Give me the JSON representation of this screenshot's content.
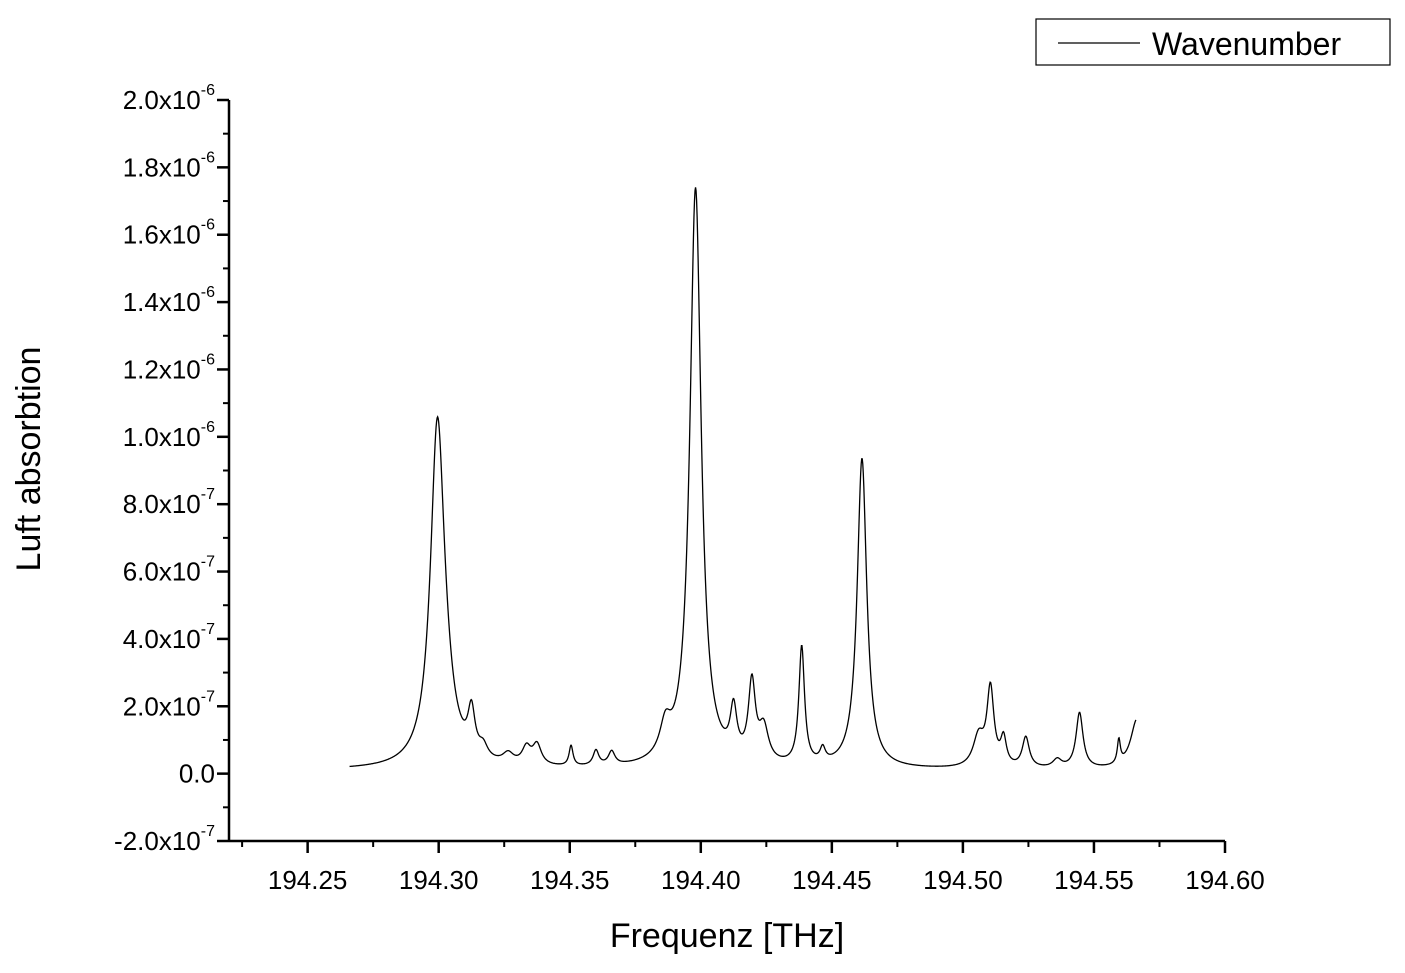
{
  "chart_data": {
    "type": "line",
    "xlabel": "Frequenz [THz]",
    "ylabel": "Luft absorbtion",
    "xlim": [
      194.22,
      194.6
    ],
    "ylim": [
      -2e-07,
      2e-06
    ],
    "x_ticks": [
      194.25,
      194.3,
      194.35,
      194.4,
      194.45,
      194.5,
      194.55,
      194.6
    ],
    "x_tick_labels": [
      "194.25",
      "194.30",
      "194.35",
      "194.40",
      "194.45",
      "194.50",
      "194.55",
      "194.60"
    ],
    "y_ticks": [
      -2e-07,
      0,
      2e-07,
      4e-07,
      6e-07,
      8e-07,
      1e-06,
      1.2e-06,
      1.4e-06,
      1.6e-06,
      1.8e-06,
      2e-06
    ],
    "y_tick_labels": [
      {
        "mantissa": "-2.0x10",
        "exp": "-7"
      },
      {
        "mantissa": "0.0",
        "exp": ""
      },
      {
        "mantissa": "2.0x10",
        "exp": "-7"
      },
      {
        "mantissa": "4.0x10",
        "exp": "-7"
      },
      {
        "mantissa": "6.0x10",
        "exp": "-7"
      },
      {
        "mantissa": "8.0x10",
        "exp": "-7"
      },
      {
        "mantissa": "1.0x10",
        "exp": "-6"
      },
      {
        "mantissa": "1.2x10",
        "exp": "-6"
      },
      {
        "mantissa": "1.4x10",
        "exp": "-6"
      },
      {
        "mantissa": "1.6x10",
        "exp": "-6"
      },
      {
        "mantissa": "1.8x10",
        "exp": "-6"
      },
      {
        "mantissa": "2.0x10",
        "exp": "-6"
      }
    ],
    "grid": false,
    "legend_position": "top-right",
    "series": [
      {
        "name": "Wavenumber",
        "color": "#000000",
        "baseline": 1e-08,
        "x_start": 194.266,
        "x_end": 194.566,
        "peaks": [
          {
            "center": 194.2995,
            "height": 9.8e-07,
            "width": 0.0032
          },
          {
            "center": 194.3025,
            "height": 1e-07,
            "width": 0.004
          },
          {
            "center": 194.3125,
            "height": 1.3e-07,
            "width": 0.0016
          },
          {
            "center": 194.317,
            "height": 3.5e-08,
            "width": 0.002
          },
          {
            "center": 194.3265,
            "height": 3e-08,
            "width": 0.0025
          },
          {
            "center": 194.3335,
            "height": 5e-08,
            "width": 0.002
          },
          {
            "center": 194.3375,
            "height": 6e-08,
            "width": 0.002
          },
          {
            "center": 194.3505,
            "height": 6e-08,
            "width": 0.0009
          },
          {
            "center": 194.36,
            "height": 4.5e-08,
            "width": 0.0013
          },
          {
            "center": 194.366,
            "height": 4e-08,
            "width": 0.0015
          },
          {
            "center": 194.3865,
            "height": 9e-08,
            "width": 0.0025
          },
          {
            "center": 194.398,
            "height": 1.72e-06,
            "width": 0.0026
          },
          {
            "center": 194.4125,
            "height": 1.4e-07,
            "width": 0.0015
          },
          {
            "center": 194.4195,
            "height": 2.3e-07,
            "width": 0.0016
          },
          {
            "center": 194.424,
            "height": 1e-07,
            "width": 0.0022
          },
          {
            "center": 194.4385,
            "height": 3.5e-07,
            "width": 0.0013
          },
          {
            "center": 194.4465,
            "height": 4e-08,
            "width": 0.0012
          },
          {
            "center": 194.4615,
            "height": 9.2e-07,
            "width": 0.0022
          },
          {
            "center": 194.506,
            "height": 9e-08,
            "width": 0.0025
          },
          {
            "center": 194.5105,
            "height": 2.3e-07,
            "width": 0.0016
          },
          {
            "center": 194.5155,
            "height": 8e-08,
            "width": 0.0013
          },
          {
            "center": 194.524,
            "height": 9e-08,
            "width": 0.0016
          },
          {
            "center": 194.536,
            "height": 2.5e-08,
            "width": 0.002
          },
          {
            "center": 194.5445,
            "height": 1.65e-07,
            "width": 0.0016
          },
          {
            "center": 194.5595,
            "height": 7e-08,
            "width": 0.0007
          },
          {
            "center": 194.5665,
            "height": 1.5e-07,
            "width": 0.003
          }
        ]
      }
    ]
  }
}
